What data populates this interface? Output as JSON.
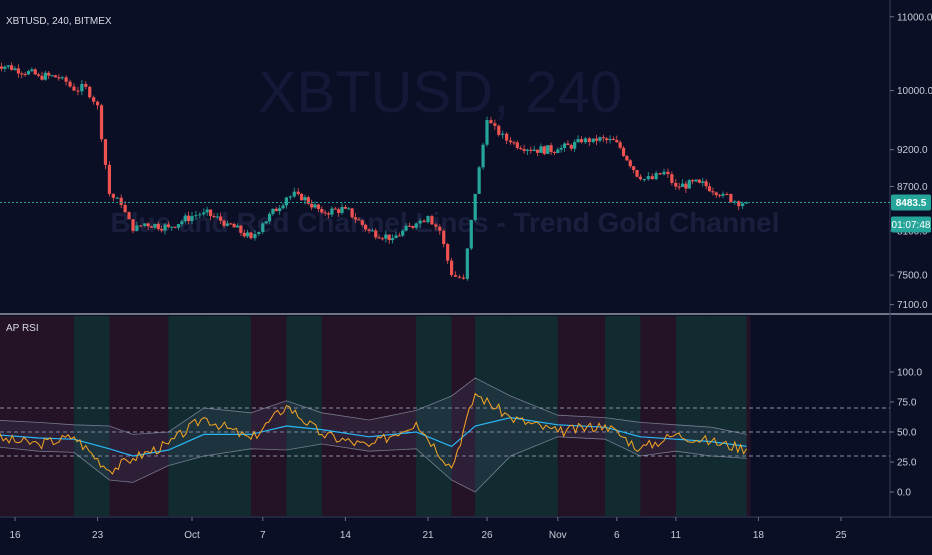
{
  "symbol_title": "XBTUSD, 240, BITMEX",
  "watermark": {
    "symbol": "XBTUSD, 240",
    "note": "Blue and Red Channel Lines - Trend Gold Channel"
  },
  "price_axis": {
    "ticks": [
      "11000.0",
      "10000.0",
      "9200.0",
      "8700.0",
      "8100.0",
      "7500.0",
      "7100.0"
    ],
    "last_price": "8483.5",
    "countdown": "01:07:48"
  },
  "indicator": {
    "title": "AP RSI",
    "ticks": [
      "100.0",
      "75.0",
      "50.0",
      "25.0",
      "0.0"
    ],
    "levels": [
      70,
      50,
      30
    ]
  },
  "time_axis": {
    "labels": [
      "16",
      "23",
      "Oct",
      "7",
      "14",
      "21",
      "26",
      "Nov",
      "6",
      "11",
      "18",
      "25"
    ]
  },
  "colors": {
    "background": "#0b0f26",
    "candle_up": "#26a69a",
    "candle_down": "#ef5350",
    "price_line": "#26a69a",
    "rsi_line": "#f5a623",
    "rsi_ma": "#29b6f6",
    "band": "#9aa0b5",
    "zone_red": "#3a1626",
    "zone_green": "#0f2f33"
  },
  "chart_data": {
    "type": "candlestick",
    "title": "XBTUSD, 240, BITMEX",
    "timeframe": "240",
    "ylim": [
      7000,
      11200
    ],
    "price_series": [
      {
        "date": "Sep 14",
        "close": 10380
      },
      {
        "date": "Sep 16",
        "close": 10300
      },
      {
        "date": "Sep 18",
        "close": 10200
      },
      {
        "date": "Sep 20",
        "close": 10180
      },
      {
        "date": "Sep 21",
        "close": 10000
      },
      {
        "date": "Sep 22",
        "close": 10050
      },
      {
        "date": "Sep 23",
        "close": 9800
      },
      {
        "date": "Sep 24",
        "close": 8600
      },
      {
        "date": "Sep 25",
        "close": 8450
      },
      {
        "date": "Sep 26",
        "close": 8100
      },
      {
        "date": "Sep 27",
        "close": 8200
      },
      {
        "date": "Sep 29",
        "close": 8150
      },
      {
        "date": "Oct 1",
        "close": 8300
      },
      {
        "date": "Oct 2",
        "close": 8350
      },
      {
        "date": "Oct 4",
        "close": 8200
      },
      {
        "date": "Oct 6",
        "close": 8000
      },
      {
        "date": "Oct 7",
        "close": 8200
      },
      {
        "date": "Oct 9",
        "close": 8550
      },
      {
        "date": "Oct 10",
        "close": 8600
      },
      {
        "date": "Oct 12",
        "close": 8350
      },
      {
        "date": "Oct 14",
        "close": 8400
      },
      {
        "date": "Oct 16",
        "close": 8100
      },
      {
        "date": "Oct 18",
        "close": 8000
      },
      {
        "date": "Oct 20",
        "close": 8200
      },
      {
        "date": "Oct 21",
        "close": 8300
      },
      {
        "date": "Oct 22",
        "close": 8100
      },
      {
        "date": "Oct 23",
        "close": 7500
      },
      {
        "date": "Oct 24",
        "close": 7450
      },
      {
        "date": "Oct 25",
        "close": 8600
      },
      {
        "date": "Oct 26",
        "close": 9600
      },
      {
        "date": "Oct 27",
        "close": 9400
      },
      {
        "date": "Oct 28",
        "close": 9300
      },
      {
        "date": "Oct 30",
        "close": 9200
      },
      {
        "date": "Nov 1",
        "close": 9200
      },
      {
        "date": "Nov 3",
        "close": 9300
      },
      {
        "date": "Nov 4",
        "close": 9350
      },
      {
        "date": "Nov 6",
        "close": 9300
      },
      {
        "date": "Nov 8",
        "close": 8800
      },
      {
        "date": "Nov 9",
        "close": 8800
      },
      {
        "date": "Nov 10",
        "close": 8900
      },
      {
        "date": "Nov 11",
        "close": 8700
      },
      {
        "date": "Nov 13",
        "close": 8750
      },
      {
        "date": "Nov 15",
        "close": 8600
      },
      {
        "date": "Nov 16",
        "close": 8500
      },
      {
        "date": "Nov 17",
        "close": 8483.5
      }
    ],
    "rsi_series": [
      {
        "date": "Sep 14",
        "rsi": 45,
        "ma": 48,
        "upper": 60,
        "lower": 38
      },
      {
        "date": "Sep 18",
        "rsi": 40,
        "ma": 45,
        "upper": 58,
        "lower": 34
      },
      {
        "date": "Sep 21",
        "rsi": 46,
        "ma": 44,
        "upper": 56,
        "lower": 33
      },
      {
        "date": "Sep 24",
        "rsi": 18,
        "ma": 36,
        "upper": 55,
        "lower": 10
      },
      {
        "date": "Sep 26",
        "rsi": 28,
        "ma": 30,
        "upper": 48,
        "lower": 8
      },
      {
        "date": "Sep 29",
        "rsi": 40,
        "ma": 35,
        "upper": 50,
        "lower": 22
      },
      {
        "date": "Oct 2",
        "rsi": 62,
        "ma": 48,
        "upper": 70,
        "lower": 30
      },
      {
        "date": "Oct 6",
        "rsi": 44,
        "ma": 48,
        "upper": 66,
        "lower": 36
      },
      {
        "date": "Oct 9",
        "rsi": 72,
        "ma": 55,
        "upper": 76,
        "lower": 35
      },
      {
        "date": "Oct 12",
        "rsi": 48,
        "ma": 52,
        "upper": 66,
        "lower": 40
      },
      {
        "date": "Oct 16",
        "rsi": 38,
        "ma": 46,
        "upper": 60,
        "lower": 34
      },
      {
        "date": "Oct 20",
        "rsi": 58,
        "ma": 50,
        "upper": 68,
        "lower": 36
      },
      {
        "date": "Oct 23",
        "rsi": 20,
        "ma": 38,
        "upper": 80,
        "lower": 10
      },
      {
        "date": "Oct 25",
        "rsi": 82,
        "ma": 55,
        "upper": 95,
        "lower": 0
      },
      {
        "date": "Oct 28",
        "rsi": 62,
        "ma": 62,
        "upper": 80,
        "lower": 30
      },
      {
        "date": "Nov 1",
        "rsi": 50,
        "ma": 56,
        "upper": 64,
        "lower": 46
      },
      {
        "date": "Nov 5",
        "rsi": 56,
        "ma": 54,
        "upper": 62,
        "lower": 44
      },
      {
        "date": "Nov 8",
        "rsi": 36,
        "ma": 46,
        "upper": 58,
        "lower": 30
      },
      {
        "date": "Nov 11",
        "rsi": 48,
        "ma": 44,
        "upper": 56,
        "lower": 34
      },
      {
        "date": "Nov 14",
        "rsi": 42,
        "ma": 42,
        "upper": 54,
        "lower": 30
      },
      {
        "date": "Nov 17",
        "rsi": 36,
        "ma": 38,
        "upper": 48,
        "lower": 28
      }
    ]
  }
}
